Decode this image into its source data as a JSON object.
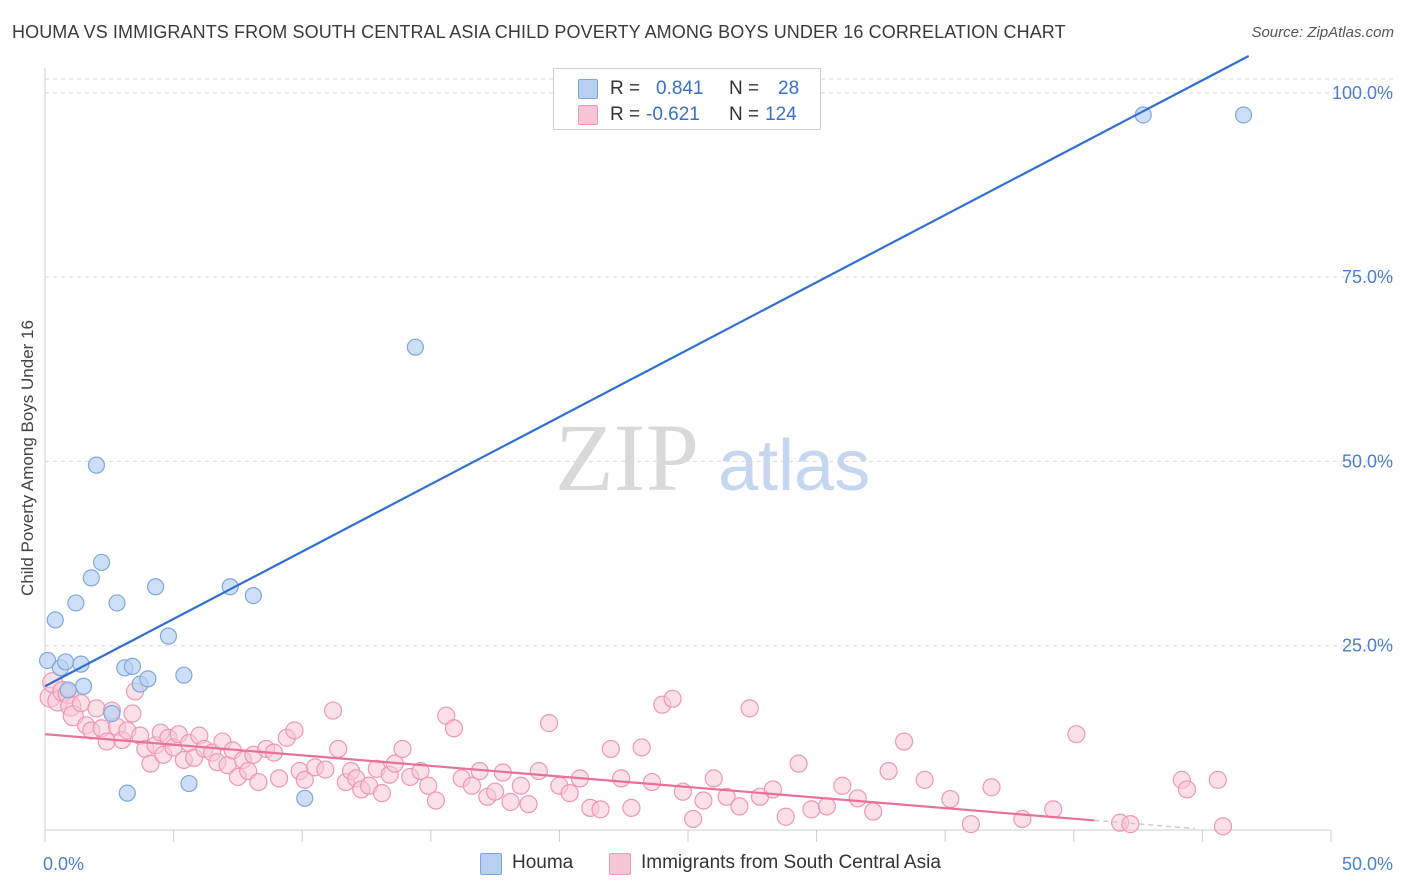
{
  "header": {
    "title": "HOUMA VS IMMIGRANTS FROM SOUTH CENTRAL ASIA CHILD POVERTY AMONG BOYS UNDER 16 CORRELATION CHART",
    "source": "Source: ZipAtlas.com"
  },
  "watermark": {
    "zip": "ZIP",
    "atlas": "atlas"
  },
  "legend": {
    "rows": [
      {
        "r_label": "R =",
        "r_value": "0.841",
        "n_label": "N =",
        "n_value": "28"
      },
      {
        "r_label": "R =",
        "r_value": "-0.621",
        "n_label": "N =",
        "n_value": "124"
      }
    ]
  },
  "bottom_legend": {
    "houma": "Houma",
    "immigrants": "Immigrants from South Central Asia"
  },
  "colors": {
    "houma_fill": "#b8d1f3",
    "houma_stroke": "#7fa6dc",
    "houma_line": "#2f6fd1",
    "immig_fill": "#f7c6d6",
    "immig_stroke": "#ee97b4",
    "immig_line": "#e8709a",
    "tick_text": "#4a7fcf",
    "grid": "#d9d9d9"
  },
  "chart_data": {
    "type": "scatter",
    "title": "HOUMA VS IMMIGRANTS FROM SOUTH CENTRAL ASIA CHILD POVERTY AMONG BOYS UNDER 16 CORRELATION CHART",
    "xlabel": "",
    "ylabel": "Child Poverty Among Boys Under 16",
    "xlim": [
      0,
      50
    ],
    "ylim": [
      0,
      105
    ],
    "x_tick_labels": [
      "0.0%",
      "50.0%"
    ],
    "y_ticks": [
      25,
      50,
      75,
      100
    ],
    "y_tick_labels": [
      "25.0%",
      "50.0%",
      "75.0%",
      "100.0%"
    ],
    "grid": true,
    "legend_position": "top-center",
    "series": [
      {
        "name": "Houma",
        "r": 0.841,
        "n": 28,
        "trend": {
          "x": [
            0,
            46.8
          ],
          "y": [
            19.5,
            105
          ]
        },
        "points": [
          [
            0.1,
            23.0
          ],
          [
            0.4,
            28.5
          ],
          [
            0.6,
            22.0
          ],
          [
            0.8,
            22.8
          ],
          [
            0.9,
            19.0
          ],
          [
            1.2,
            30.8
          ],
          [
            1.4,
            22.5
          ],
          [
            1.5,
            19.5
          ],
          [
            1.8,
            34.2
          ],
          [
            2.0,
            49.5
          ],
          [
            2.2,
            36.3
          ],
          [
            2.6,
            15.8
          ],
          [
            2.8,
            30.8
          ],
          [
            3.1,
            22.0
          ],
          [
            3.2,
            5.0
          ],
          [
            3.4,
            22.2
          ],
          [
            3.7,
            19.8
          ],
          [
            4.0,
            20.5
          ],
          [
            4.3,
            33.0
          ],
          [
            4.8,
            26.3
          ],
          [
            5.4,
            21.0
          ],
          [
            5.6,
            6.3
          ],
          [
            7.2,
            33.0
          ],
          [
            8.1,
            31.8
          ],
          [
            10.1,
            4.3
          ],
          [
            14.4,
            65.5
          ],
          [
            42.7,
            97.0
          ],
          [
            46.6,
            97.0
          ]
        ]
      },
      {
        "name": "Immigrants from South Central Asia",
        "r": -0.621,
        "n": 124,
        "trend": {
          "x": [
            0,
            40.8
          ],
          "y": [
            13.0,
            1.3
          ]
        },
        "trend_dashed": {
          "x": [
            40.8,
            44.7
          ],
          "y": [
            1.3,
            0.2
          ]
        },
        "points": [
          [
            0.2,
            18.0
          ],
          [
            0.3,
            20.0
          ],
          [
            0.5,
            17.5
          ],
          [
            0.7,
            18.8
          ],
          [
            0.9,
            18.5
          ],
          [
            1.0,
            16.8
          ],
          [
            1.1,
            15.5
          ],
          [
            1.4,
            17.2
          ],
          [
            1.6,
            14.2
          ],
          [
            1.8,
            13.5
          ],
          [
            2.0,
            16.5
          ],
          [
            2.2,
            13.8
          ],
          [
            2.4,
            12.0
          ],
          [
            2.6,
            16.2
          ],
          [
            2.8,
            14.0
          ],
          [
            3.0,
            12.2
          ],
          [
            3.2,
            13.5
          ],
          [
            3.4,
            15.8
          ],
          [
            3.5,
            18.8
          ],
          [
            3.7,
            12.8
          ],
          [
            3.9,
            11.0
          ],
          [
            4.1,
            9.0
          ],
          [
            4.3,
            11.5
          ],
          [
            4.5,
            13.2
          ],
          [
            4.6,
            10.2
          ],
          [
            4.8,
            12.5
          ],
          [
            5.0,
            11.2
          ],
          [
            5.2,
            13.0
          ],
          [
            5.4,
            9.5
          ],
          [
            5.6,
            11.8
          ],
          [
            5.8,
            9.8
          ],
          [
            6.0,
            12.8
          ],
          [
            6.2,
            11.0
          ],
          [
            6.5,
            10.5
          ],
          [
            6.7,
            9.2
          ],
          [
            6.9,
            12.0
          ],
          [
            7.1,
            8.8
          ],
          [
            7.3,
            10.8
          ],
          [
            7.5,
            7.2
          ],
          [
            7.7,
            9.5
          ],
          [
            7.9,
            8.0
          ],
          [
            8.1,
            10.2
          ],
          [
            8.3,
            6.5
          ],
          [
            8.6,
            11.0
          ],
          [
            8.9,
            10.5
          ],
          [
            9.1,
            7.0
          ],
          [
            9.4,
            12.5
          ],
          [
            9.7,
            13.5
          ],
          [
            9.9,
            8.0
          ],
          [
            10.1,
            6.8
          ],
          [
            10.5,
            8.5
          ],
          [
            10.9,
            8.2
          ],
          [
            11.2,
            16.2
          ],
          [
            11.4,
            11.0
          ],
          [
            11.7,
            6.5
          ],
          [
            11.9,
            8.0
          ],
          [
            12.1,
            7.0
          ],
          [
            12.3,
            5.5
          ],
          [
            12.6,
            6.0
          ],
          [
            12.9,
            8.3
          ],
          [
            13.1,
            5.0
          ],
          [
            13.4,
            7.5
          ],
          [
            13.6,
            9.0
          ],
          [
            13.9,
            11.0
          ],
          [
            14.2,
            7.2
          ],
          [
            14.6,
            8.0
          ],
          [
            14.9,
            6.0
          ],
          [
            15.2,
            4.0
          ],
          [
            15.6,
            15.5
          ],
          [
            15.9,
            13.8
          ],
          [
            16.2,
            7.0
          ],
          [
            16.6,
            6.0
          ],
          [
            16.9,
            8.0
          ],
          [
            17.2,
            4.5
          ],
          [
            17.5,
            5.2
          ],
          [
            17.8,
            7.8
          ],
          [
            18.1,
            3.8
          ],
          [
            18.5,
            6.0
          ],
          [
            18.8,
            3.5
          ],
          [
            19.2,
            8.0
          ],
          [
            19.6,
            14.5
          ],
          [
            20.0,
            6.0
          ],
          [
            20.4,
            5.0
          ],
          [
            20.8,
            7.0
          ],
          [
            21.2,
            3.0
          ],
          [
            21.6,
            2.8
          ],
          [
            22.0,
            11.0
          ],
          [
            22.4,
            7.0
          ],
          [
            22.8,
            3.0
          ],
          [
            23.2,
            11.2
          ],
          [
            23.6,
            6.5
          ],
          [
            24.0,
            17.0
          ],
          [
            24.4,
            17.8
          ],
          [
            24.8,
            5.2
          ],
          [
            25.2,
            1.5
          ],
          [
            25.6,
            4.0
          ],
          [
            26.0,
            7.0
          ],
          [
            26.5,
            4.5
          ],
          [
            27.0,
            3.2
          ],
          [
            27.4,
            16.5
          ],
          [
            27.8,
            4.5
          ],
          [
            28.3,
            5.5
          ],
          [
            28.8,
            1.8
          ],
          [
            29.3,
            9.0
          ],
          [
            29.8,
            2.8
          ],
          [
            30.4,
            3.2
          ],
          [
            31.0,
            6.0
          ],
          [
            31.6,
            4.3
          ],
          [
            32.2,
            2.5
          ],
          [
            32.8,
            8.0
          ],
          [
            33.4,
            12.0
          ],
          [
            34.2,
            6.8
          ],
          [
            35.2,
            4.2
          ],
          [
            36.0,
            0.8
          ],
          [
            36.8,
            5.8
          ],
          [
            38.0,
            1.5
          ],
          [
            39.2,
            2.8
          ],
          [
            40.1,
            13.0
          ],
          [
            41.8,
            1.0
          ],
          [
            42.2,
            0.8
          ],
          [
            44.2,
            6.8
          ],
          [
            44.4,
            5.5
          ],
          [
            45.6,
            6.8
          ],
          [
            45.8,
            0.5
          ]
        ]
      }
    ]
  }
}
